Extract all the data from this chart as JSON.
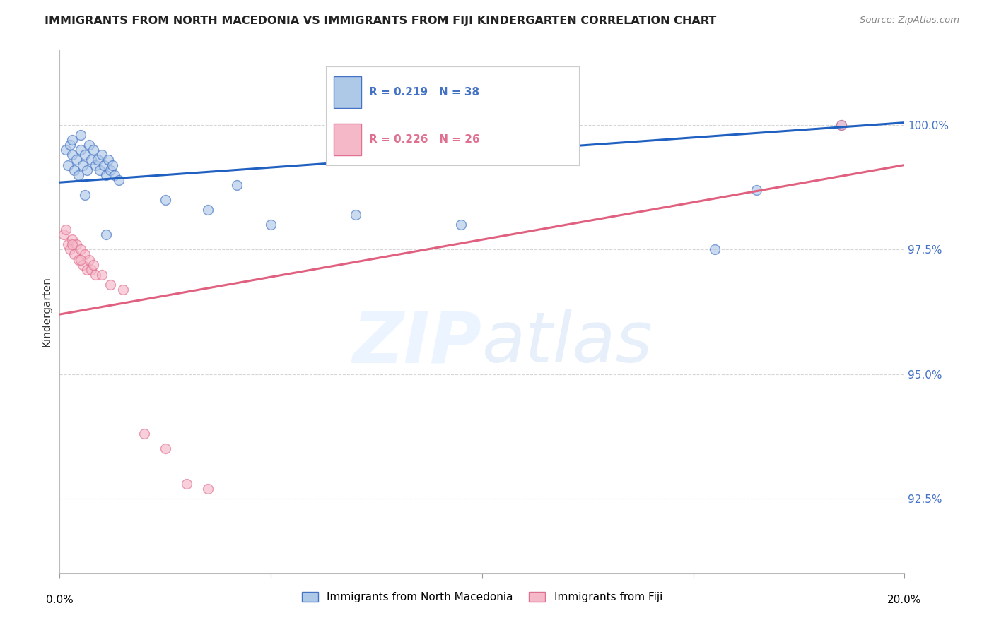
{
  "title": "IMMIGRANTS FROM NORTH MACEDONIA VS IMMIGRANTS FROM FIJI KINDERGARTEN CORRELATION CHART",
  "source": "Source: ZipAtlas.com",
  "ylabel": "Kindergarten",
  "ytick_values": [
    92.5,
    95.0,
    97.5,
    100.0
  ],
  "xlim": [
    0.0,
    20.0
  ],
  "ylim": [
    91.0,
    101.5
  ],
  "legend_blue_r": "R = 0.219",
  "legend_blue_n": "N = 38",
  "legend_pink_r": "R = 0.226",
  "legend_pink_n": "N = 26",
  "legend_label_blue": "Immigrants from North Macedonia",
  "legend_label_pink": "Immigrants from Fiji",
  "blue_fill": "#aec9e8",
  "blue_edge": "#4472c4",
  "pink_fill": "#f5b8c8",
  "pink_edge": "#e07090",
  "blue_line_color": "#2060c0",
  "pink_line_color": "#e06080",
  "blue_scatter_x": [
    0.15,
    0.2,
    0.25,
    0.3,
    0.35,
    0.4,
    0.45,
    0.5,
    0.55,
    0.6,
    0.65,
    0.7,
    0.75,
    0.8,
    0.85,
    0.9,
    0.95,
    1.0,
    1.05,
    1.1,
    1.15,
    1.2,
    1.25,
    1.3,
    1.4,
    2.5,
    3.5,
    4.2,
    5.0,
    7.0,
    9.5,
    15.5,
    16.5,
    18.5,
    0.5,
    0.3,
    0.6,
    1.1
  ],
  "blue_scatter_y": [
    99.5,
    99.2,
    99.6,
    99.4,
    99.1,
    99.3,
    99.0,
    99.5,
    99.2,
    99.4,
    99.1,
    99.6,
    99.3,
    99.5,
    99.2,
    99.3,
    99.1,
    99.4,
    99.2,
    99.0,
    99.3,
    99.1,
    99.2,
    99.0,
    98.9,
    98.5,
    98.3,
    98.8,
    98.0,
    98.2,
    98.0,
    97.5,
    98.7,
    100.0,
    99.8,
    99.7,
    98.6,
    97.8
  ],
  "pink_scatter_x": [
    0.1,
    0.2,
    0.25,
    0.3,
    0.35,
    0.4,
    0.45,
    0.5,
    0.55,
    0.6,
    0.65,
    0.7,
    0.75,
    0.8,
    0.85,
    1.0,
    1.2,
    1.5,
    2.0,
    2.5,
    3.0,
    3.5,
    18.5,
    0.15,
    0.3,
    0.5
  ],
  "pink_scatter_y": [
    97.8,
    97.6,
    97.5,
    97.7,
    97.4,
    97.6,
    97.3,
    97.5,
    97.2,
    97.4,
    97.1,
    97.3,
    97.1,
    97.2,
    97.0,
    97.0,
    96.8,
    96.7,
    93.8,
    93.5,
    92.8,
    92.7,
    100.0,
    97.9,
    97.6,
    97.3
  ],
  "blue_trend_x": [
    0.0,
    20.0
  ],
  "blue_trend_y": [
    98.85,
    100.05
  ],
  "pink_trend_x": [
    0.0,
    20.0
  ],
  "pink_trend_y": [
    96.2,
    99.2
  ],
  "watermark_zip": "ZIP",
  "watermark_atlas": "atlas",
  "background_color": "#ffffff",
  "grid_color": "#cccccc",
  "scatter_size": 100
}
